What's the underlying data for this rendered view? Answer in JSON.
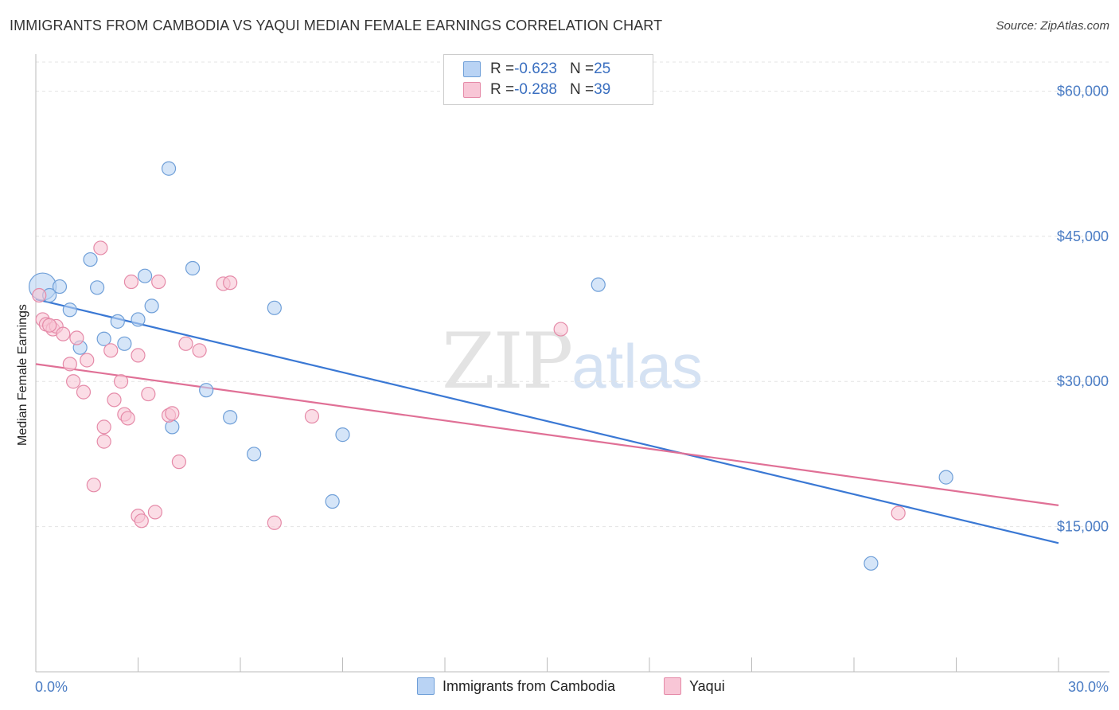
{
  "title": "IMMIGRANTS FROM CAMBODIA VS YAQUI MEDIAN FEMALE EARNINGS CORRELATION CHART",
  "source": "Source: ZipAtlas.com",
  "watermark": {
    "zip": "ZIP",
    "atlas": "atlas"
  },
  "legend": {
    "r_label": "R = ",
    "n_label": "N = ",
    "series1": {
      "r": "-0.623",
      "n": "25"
    },
    "series2": {
      "r": "-0.288",
      "n": "39"
    }
  },
  "bottom_legend": {
    "series1": "Immigrants from Cambodia",
    "series2": "Yaqui"
  },
  "colors": {
    "series1_fill": "#b9d3f4",
    "series1_stroke": "#6f9fd8",
    "series1_line": "#3a78d4",
    "series2_fill": "#f8c6d6",
    "series2_stroke": "#e58aa8",
    "series2_line": "#e07096",
    "grid": "#e4e4e4",
    "tick_text": "#4a7cc4"
  },
  "chart_data": {
    "type": "scatter",
    "xlabel": "",
    "ylabel": "Median Female Earnings",
    "xlim": [
      0,
      30
    ],
    "ylim": [
      0,
      63000
    ],
    "x_tick_labels": [
      "0.0%",
      "30.0%"
    ],
    "y_ticks": [
      15000,
      30000,
      45000,
      60000
    ],
    "y_tick_labels": [
      "$15,000",
      "$30,000",
      "$45,000",
      "$60,000"
    ],
    "grid": true,
    "series": [
      {
        "name": "Immigrants from Cambodia",
        "points": [
          [
            0.2,
            39800
          ],
          [
            0.4,
            38900
          ],
          [
            0.7,
            39800
          ],
          [
            1.0,
            37400
          ],
          [
            1.3,
            33500
          ],
          [
            1.6,
            42600
          ],
          [
            1.8,
            39700
          ],
          [
            2.0,
            34400
          ],
          [
            2.4,
            36200
          ],
          [
            2.6,
            33900
          ],
          [
            3.0,
            36400
          ],
          [
            3.2,
            40900
          ],
          [
            3.4,
            37800
          ],
          [
            3.9,
            52000
          ],
          [
            4.0,
            25300
          ],
          [
            4.6,
            41700
          ],
          [
            5.0,
            29100
          ],
          [
            5.7,
            26300
          ],
          [
            6.4,
            22500
          ],
          [
            7.0,
            37600
          ],
          [
            8.7,
            17600
          ],
          [
            9.0,
            24500
          ],
          [
            16.5,
            40000
          ],
          [
            24.5,
            11200
          ],
          [
            26.7,
            20100
          ]
        ],
        "trend": {
          "x": [
            0,
            30
          ],
          "y": [
            38500,
            13300
          ]
        }
      },
      {
        "name": "Yaqui",
        "points": [
          [
            0.1,
            38900
          ],
          [
            0.2,
            36400
          ],
          [
            0.3,
            35900
          ],
          [
            0.5,
            35400
          ],
          [
            0.6,
            35700
          ],
          [
            0.8,
            34900
          ],
          [
            1.0,
            31800
          ],
          [
            1.1,
            30000
          ],
          [
            1.2,
            34500
          ],
          [
            1.4,
            28900
          ],
          [
            1.5,
            32200
          ],
          [
            1.7,
            19300
          ],
          [
            1.9,
            43800
          ],
          [
            2.0,
            23800
          ],
          [
            2.0,
            25300
          ],
          [
            2.2,
            33200
          ],
          [
            2.3,
            28100
          ],
          [
            2.5,
            30000
          ],
          [
            2.6,
            26600
          ],
          [
            2.7,
            26200
          ],
          [
            2.8,
            40300
          ],
          [
            3.0,
            16100
          ],
          [
            3.0,
            32700
          ],
          [
            3.1,
            15600
          ],
          [
            3.3,
            28700
          ],
          [
            3.5,
            16500
          ],
          [
            3.6,
            40300
          ],
          [
            3.9,
            26500
          ],
          [
            4.0,
            26700
          ],
          [
            4.2,
            21700
          ],
          [
            4.4,
            33900
          ],
          [
            4.8,
            33200
          ],
          [
            5.5,
            40100
          ],
          [
            5.7,
            40200
          ],
          [
            7.0,
            15400
          ],
          [
            8.1,
            26400
          ],
          [
            15.4,
            35400
          ],
          [
            25.3,
            16400
          ],
          [
            0.4,
            35800
          ]
        ],
        "trend": {
          "x": [
            0,
            30
          ],
          "y": [
            31800,
            17200
          ]
        }
      }
    ]
  }
}
